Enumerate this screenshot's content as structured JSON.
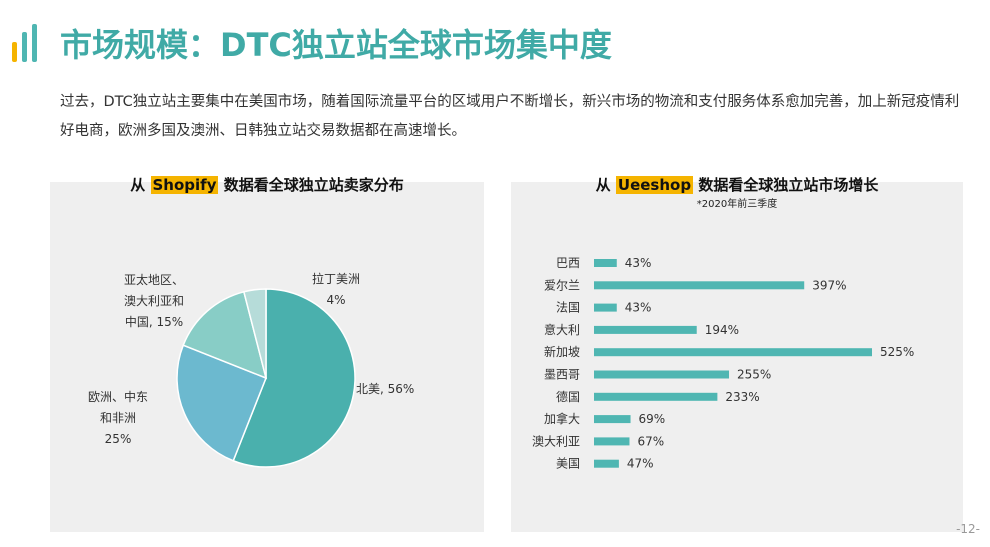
{
  "header": {
    "title": "市场规模：DTC独立站全球市场集中度"
  },
  "intro": {
    "text": "过去，DTC独立站主要集中在美国市场，随着国际流量平台的区域用户不断增长，新兴市场的物流和支付服务体系愈加完善，加上新冠疫情利好电商，欧洲多国及澳洲、日韩独立站交易数据都在高速增长。"
  },
  "left_panel": {
    "title_prefix": "从 ",
    "title_highlight": "Shopify",
    "title_suffix": " 数据看全球独立站卖家分布"
  },
  "right_panel": {
    "title_prefix": "从 ",
    "title_highlight": "Ueeshop",
    "title_suffix": " 数据看全球独立站市场增长",
    "note": "*2020年前三季度"
  },
  "page_number": "-12-",
  "colors": {
    "accent": "#40aaa6",
    "highlight": "#f5b400",
    "bar": "#4fb6b2"
  },
  "chart_data": [
    {
      "type": "pie",
      "title": "从 Shopify 数据看全球独立站卖家分布",
      "slices": [
        {
          "name": "北美",
          "value": 56,
          "label_lines": [
            "北美, 56%"
          ],
          "color": "#4ab0ad"
        },
        {
          "name": "欧洲、中东和非洲",
          "value": 25,
          "label_lines": [
            "欧洲、中东",
            "和非洲",
            "25%"
          ],
          "color": "#6cb9cf"
        },
        {
          "name": "亚太地区、澳大利亚和中国",
          "value": 15,
          "label_lines": [
            "亚太地区、",
            "澳大利亚和",
            "中国, 15%"
          ],
          "color": "#88cdc6"
        },
        {
          "name": "拉丁美洲",
          "value": 4,
          "label_lines": [
            "拉丁美洲",
            "4%"
          ],
          "color": "#b6dcd9"
        }
      ]
    },
    {
      "type": "bar",
      "orientation": "horizontal",
      "title": "从 Ueeshop 数据看全球独立站市场增长",
      "subtitle": "*2020年前三季度",
      "categories": [
        "巴西",
        "爱尔兰",
        "法国",
        "意大利",
        "新加坡",
        "墨西哥",
        "德国",
        "加拿大",
        "澳大利亚",
        "美国"
      ],
      "values": [
        43,
        397,
        43,
        194,
        525,
        255,
        233,
        69,
        67,
        47
      ],
      "value_labels": [
        "43%",
        "397%",
        "43%",
        "194%",
        "525%",
        "255%",
        "233%",
        "69%",
        "67%",
        "47%"
      ],
      "xlim": [
        0,
        525
      ]
    }
  ]
}
